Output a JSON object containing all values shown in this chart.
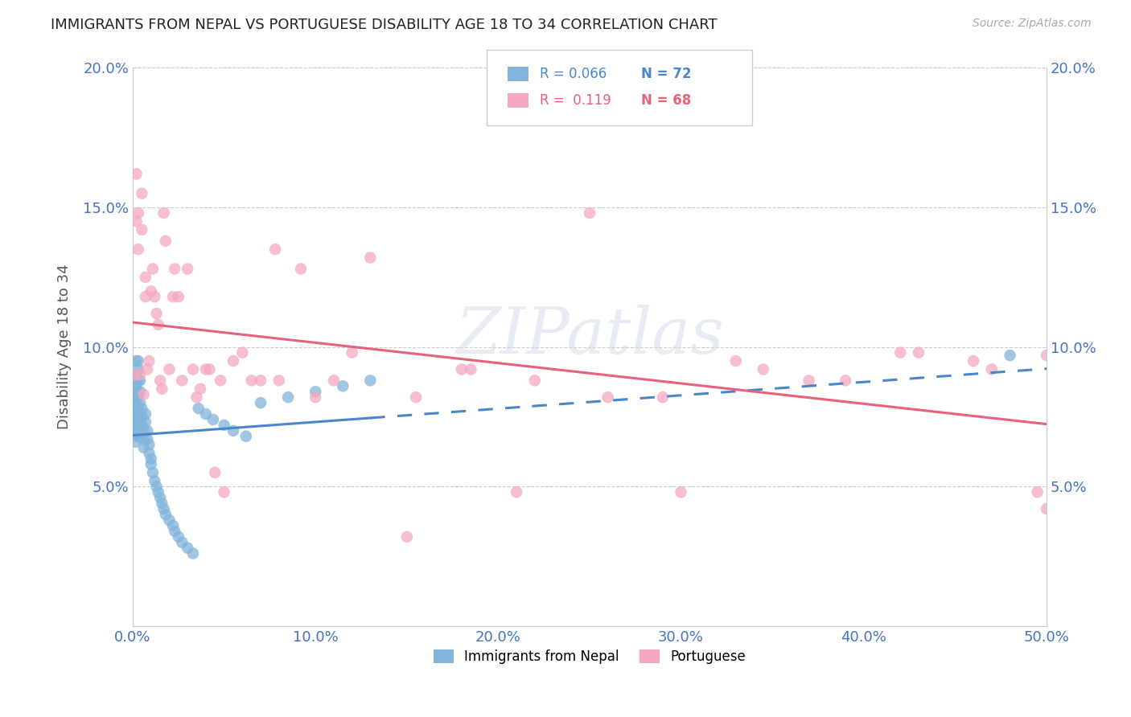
{
  "title": "IMMIGRANTS FROM NEPAL VS PORTUGUESE DISABILITY AGE 18 TO 34 CORRELATION CHART",
  "source": "Source: ZipAtlas.com",
  "ylabel": "Disability Age 18 to 34",
  "xlim": [
    0,
    0.5
  ],
  "ylim": [
    0,
    0.2
  ],
  "xticks": [
    0.0,
    0.1,
    0.2,
    0.3,
    0.4,
    0.5
  ],
  "yticks": [
    0.0,
    0.05,
    0.1,
    0.15,
    0.2
  ],
  "xticklabels": [
    "0.0%",
    "10.0%",
    "20.0%",
    "30.0%",
    "40.0%",
    "50.0%"
  ],
  "yticklabels": [
    "",
    "5.0%",
    "10.0%",
    "15.0%",
    "20.0%"
  ],
  "nepal_color": "#82b4dc",
  "portuguese_color": "#f4a8bf",
  "nepal_trend_color": "#4a86c8",
  "portuguese_trend_color": "#e8607a",
  "watermark": "ZIPatlas",
  "legend_R1": "R = 0.066",
  "legend_N1": "N = 72",
  "legend_R2": "R =  0.119",
  "legend_N2": "N = 68",
  "nepal_x": [
    0.0008,
    0.001,
    0.001,
    0.001,
    0.0012,
    0.0012,
    0.0013,
    0.0015,
    0.0015,
    0.0015,
    0.0016,
    0.0017,
    0.0018,
    0.002,
    0.002,
    0.002,
    0.002,
    0.0022,
    0.0022,
    0.0025,
    0.003,
    0.003,
    0.003,
    0.003,
    0.003,
    0.0032,
    0.0033,
    0.0035,
    0.004,
    0.004,
    0.004,
    0.005,
    0.005,
    0.005,
    0.006,
    0.006,
    0.006,
    0.007,
    0.007,
    0.008,
    0.008,
    0.009,
    0.009,
    0.01,
    0.01,
    0.011,
    0.012,
    0.013,
    0.014,
    0.015,
    0.016,
    0.017,
    0.018,
    0.02,
    0.022,
    0.023,
    0.025,
    0.027,
    0.03,
    0.033,
    0.036,
    0.04,
    0.044,
    0.05,
    0.055,
    0.062,
    0.07,
    0.085,
    0.1,
    0.115,
    0.13,
    0.48
  ],
  "nepal_y": [
    0.085,
    0.082,
    0.079,
    0.076,
    0.088,
    0.083,
    0.08,
    0.077,
    0.073,
    0.07,
    0.066,
    0.095,
    0.09,
    0.088,
    0.085,
    0.082,
    0.078,
    0.074,
    0.071,
    0.068,
    0.095,
    0.092,
    0.088,
    0.082,
    0.078,
    0.075,
    0.072,
    0.068,
    0.088,
    0.084,
    0.08,
    0.078,
    0.075,
    0.072,
    0.07,
    0.067,
    0.064,
    0.076,
    0.073,
    0.07,
    0.067,
    0.065,
    0.062,
    0.06,
    0.058,
    0.055,
    0.052,
    0.05,
    0.048,
    0.046,
    0.044,
    0.042,
    0.04,
    0.038,
    0.036,
    0.034,
    0.032,
    0.03,
    0.028,
    0.026,
    0.078,
    0.076,
    0.074,
    0.072,
    0.07,
    0.068,
    0.08,
    0.082,
    0.084,
    0.086,
    0.088,
    0.097
  ],
  "portuguese_x": [
    0.001,
    0.002,
    0.002,
    0.003,
    0.003,
    0.004,
    0.005,
    0.005,
    0.006,
    0.007,
    0.007,
    0.008,
    0.009,
    0.01,
    0.011,
    0.012,
    0.013,
    0.014,
    0.015,
    0.016,
    0.017,
    0.018,
    0.02,
    0.022,
    0.023,
    0.025,
    0.027,
    0.03,
    0.033,
    0.037,
    0.042,
    0.048,
    0.055,
    0.065,
    0.078,
    0.092,
    0.11,
    0.13,
    0.155,
    0.185,
    0.22,
    0.26,
    0.3,
    0.345,
    0.39,
    0.43,
    0.47,
    0.5,
    0.035,
    0.04,
    0.045,
    0.05,
    0.06,
    0.07,
    0.08,
    0.1,
    0.12,
    0.15,
    0.18,
    0.21,
    0.25,
    0.29,
    0.33,
    0.37,
    0.42,
    0.46,
    0.495,
    0.5
  ],
  "portuguese_y": [
    0.09,
    0.145,
    0.162,
    0.135,
    0.148,
    0.09,
    0.155,
    0.142,
    0.083,
    0.125,
    0.118,
    0.092,
    0.095,
    0.12,
    0.128,
    0.118,
    0.112,
    0.108,
    0.088,
    0.085,
    0.148,
    0.138,
    0.092,
    0.118,
    0.128,
    0.118,
    0.088,
    0.128,
    0.092,
    0.085,
    0.092,
    0.088,
    0.095,
    0.088,
    0.135,
    0.128,
    0.088,
    0.132,
    0.082,
    0.092,
    0.088,
    0.082,
    0.048,
    0.092,
    0.088,
    0.098,
    0.092,
    0.097,
    0.082,
    0.092,
    0.055,
    0.048,
    0.098,
    0.088,
    0.088,
    0.082,
    0.098,
    0.032,
    0.092,
    0.048,
    0.148,
    0.082,
    0.095,
    0.088,
    0.098,
    0.095,
    0.048,
    0.042
  ]
}
